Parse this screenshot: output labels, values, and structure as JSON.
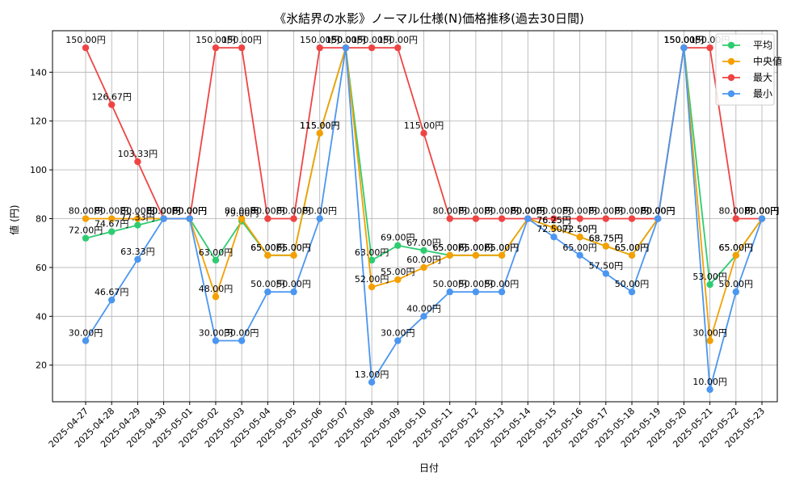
{
  "chart_data": {
    "type": "line",
    "title": "《氷結界の水影》ノーマル仕様(N)価格推移(過去30日間)",
    "xlabel": "日付",
    "ylabel": "値 (円)",
    "ylim": [
      5,
      157
    ],
    "yticks": [
      20,
      40,
      60,
      80,
      100,
      120,
      140
    ],
    "grid": true,
    "legend_position": "top-right",
    "value_suffix": "円",
    "categories": [
      "2025-04-27",
      "2025-04-28",
      "2025-04-29",
      "2025-04-30",
      "2025-05-01",
      "2025-05-02",
      "2025-05-03",
      "2025-05-04",
      "2025-05-05",
      "2025-05-06",
      "2025-05-07",
      "2025-05-08",
      "2025-05-09",
      "2025-05-10",
      "2025-05-11",
      "2025-05-12",
      "2025-05-13",
      "2025-05-14",
      "2025-05-15",
      "2025-05-16",
      "2025-05-17",
      "2025-05-18",
      "2025-05-19",
      "2025-05-20",
      "2025-05-21",
      "2025-05-22",
      "2025-05-23"
    ],
    "series": [
      {
        "name": "平均",
        "color": "#2ecc71",
        "values": [
          72.0,
          74.67,
          77.33,
          80.0,
          80.0,
          63.0,
          79.0,
          65.0,
          65.0,
          115.0,
          150.0,
          63.0,
          69.0,
          67.0,
          65.0,
          65.0,
          65.0,
          80.0,
          76.25,
          72.5,
          68.75,
          65.0,
          80.0,
          150.0,
          53.0,
          65.0,
          80.0
        ]
      },
      {
        "name": "中央値",
        "color": "#f5a000",
        "values": [
          80.0,
          80.0,
          80.0,
          80.0,
          80.0,
          48.0,
          80.0,
          65.0,
          65.0,
          115.0,
          150.0,
          52.0,
          55.0,
          60.0,
          65.0,
          65.0,
          65.0,
          80.0,
          76.25,
          72.5,
          68.75,
          65.0,
          80.0,
          150.0,
          30.0,
          65.0,
          80.0
        ]
      },
      {
        "name": "最大",
        "color": "#ef4444",
        "values": [
          150.0,
          126.67,
          103.33,
          80.0,
          80.0,
          150.0,
          150.0,
          80.0,
          80.0,
          150.0,
          150.0,
          150.0,
          150.0,
          115.0,
          80.0,
          80.0,
          80.0,
          80.0,
          80.0,
          80.0,
          80.0,
          80.0,
          80.0,
          150.0,
          150.0,
          80.0,
          80.0
        ]
      },
      {
        "name": "最小",
        "color": "#4b96f0",
        "values": [
          30.0,
          46.67,
          63.33,
          80.0,
          80.0,
          30.0,
          30.0,
          50.0,
          50.0,
          80.0,
          150.0,
          13.0,
          30.0,
          40.0,
          50.0,
          50.0,
          50.0,
          80.0,
          72.5,
          65.0,
          57.5,
          50.0,
          80.0,
          150.0,
          10.0,
          50.0,
          80.0
        ]
      }
    ]
  }
}
